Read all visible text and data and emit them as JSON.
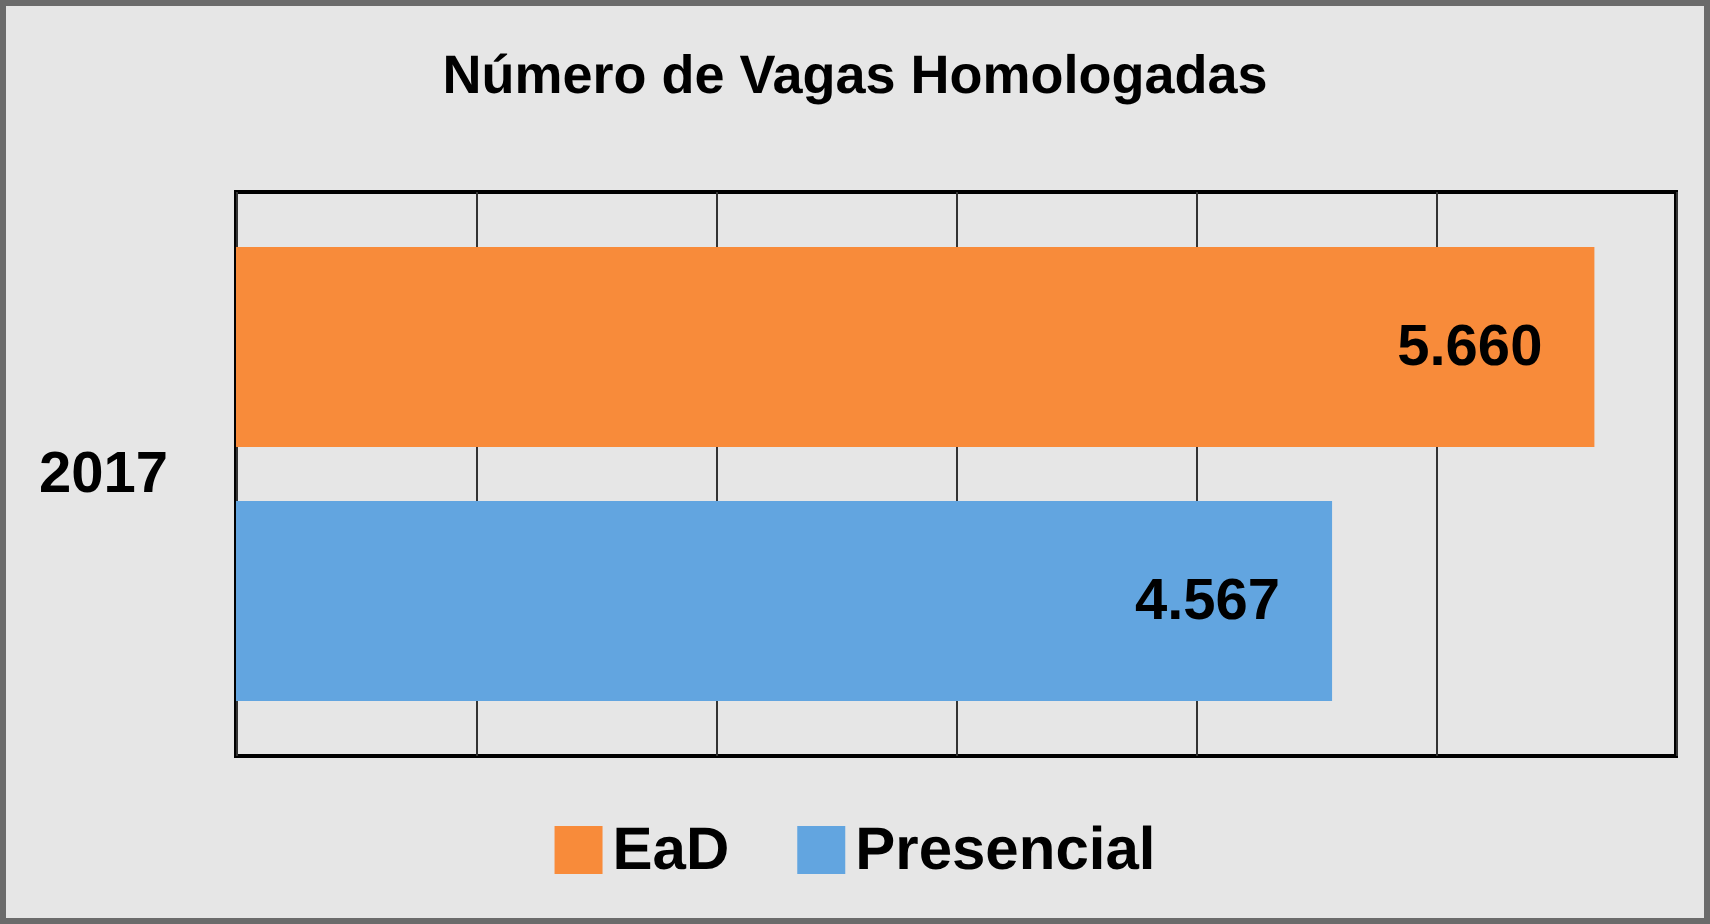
{
  "chart_data": {
    "type": "bar",
    "orientation": "horizontal",
    "title": "Número de Vagas Homologadas",
    "categories": [
      "2017"
    ],
    "series": [
      {
        "name": "EaD",
        "color": "#f88b3a",
        "values": [
          5660
        ],
        "value_labels": [
          "5.660"
        ]
      },
      {
        "name": "Presencial",
        "color": "#62a5e0",
        "values": [
          4567
        ],
        "value_labels": [
          "4.567"
        ]
      }
    ],
    "xlim": [
      0,
      6000
    ],
    "xticks": [
      0,
      1000,
      2000,
      3000,
      4000,
      5000,
      6000
    ],
    "tick_labels": "y",
    "grid": "x",
    "legend": "bottom"
  }
}
